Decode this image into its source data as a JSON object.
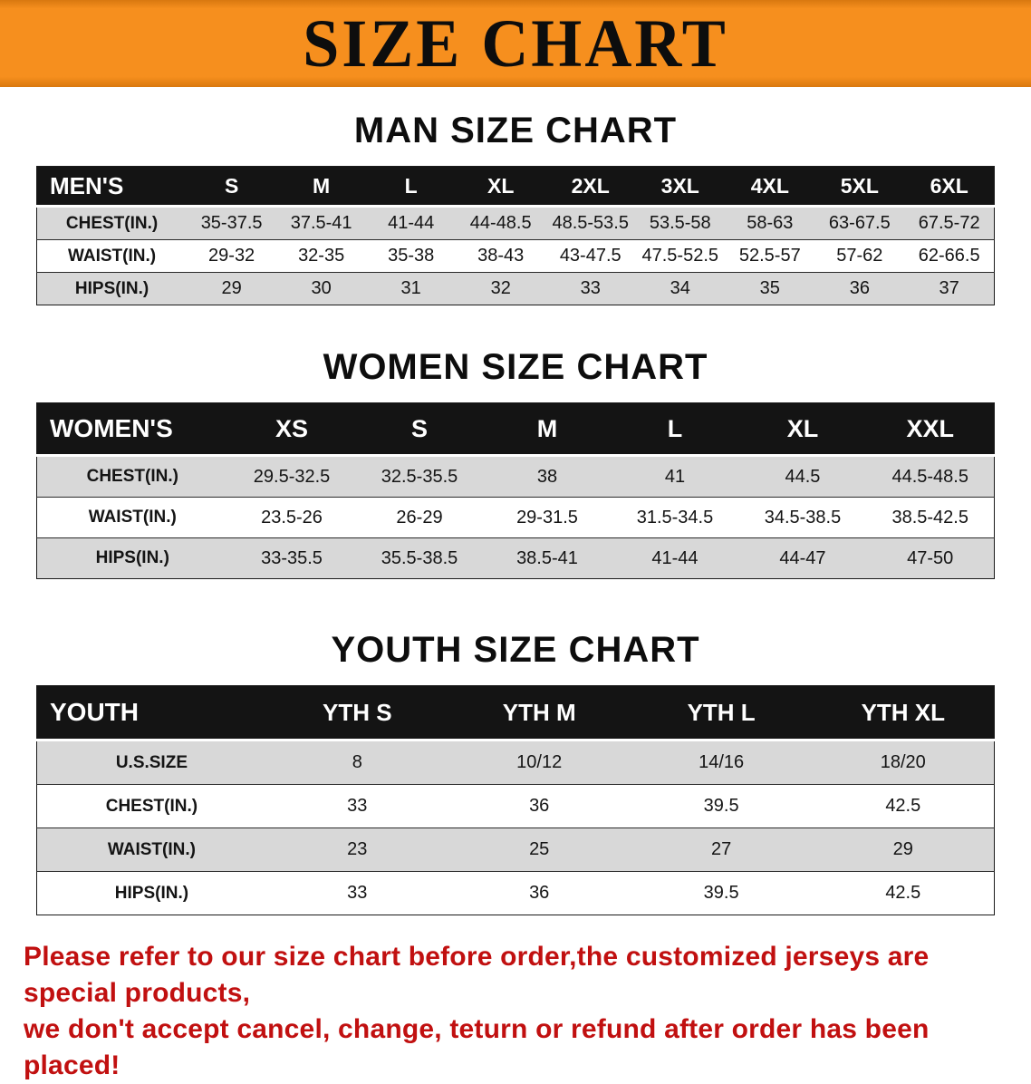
{
  "banner": {
    "title": "SIZE CHART",
    "bg_color": "#f68f1e",
    "text_color": "#0d0d0d"
  },
  "sections": [
    {
      "heading": "MAN SIZE CHART",
      "header": [
        "MEN'S",
        "S",
        "M",
        "L",
        "XL",
        "2XL",
        "3XL",
        "4XL",
        "5XL",
        "6XL"
      ],
      "rows": [
        {
          "label": "CHEST(IN.)",
          "values": [
            "35-37.5",
            "37.5-41",
            "41-44",
            "44-48.5",
            "48.5-53.5",
            "53.5-58",
            "58-63",
            "63-67.5",
            "67.5-72"
          ]
        },
        {
          "label": "WAIST(IN.)",
          "values": [
            "29-32",
            "32-35",
            "35-38",
            "38-43",
            "43-47.5",
            "47.5-52.5",
            "52.5-57",
            "57-62",
            "62-66.5"
          ]
        },
        {
          "label": "HIPS(IN.)",
          "values": [
            "29",
            "30",
            "31",
            "32",
            "33",
            "34",
            "35",
            "36",
            "37"
          ]
        }
      ]
    },
    {
      "heading": "WOMEN SIZE CHART",
      "header": [
        "WOMEN'S",
        "XS",
        "S",
        "M",
        "L",
        "XL",
        "XXL"
      ],
      "rows": [
        {
          "label": "CHEST(IN.)",
          "values": [
            "29.5-32.5",
            "32.5-35.5",
            "38",
            "41",
            "44.5",
            "44.5-48.5"
          ]
        },
        {
          "label": "WAIST(IN.)",
          "values": [
            "23.5-26",
            "26-29",
            "29-31.5",
            "31.5-34.5",
            "34.5-38.5",
            "38.5-42.5"
          ]
        },
        {
          "label": "HIPS(IN.)",
          "values": [
            "33-35.5",
            "35.5-38.5",
            "38.5-41",
            "41-44",
            "44-47",
            "47-50"
          ]
        }
      ]
    },
    {
      "heading": "YOUTH SIZE CHART",
      "header": [
        "YOUTH",
        "YTH S",
        "YTH M",
        "YTH L",
        "YTH XL"
      ],
      "rows": [
        {
          "label": "U.S.SIZE",
          "values": [
            "8",
            "10/12",
            "14/16",
            "18/20"
          ]
        },
        {
          "label": "CHEST(IN.)",
          "values": [
            "33",
            "36",
            "39.5",
            "42.5"
          ]
        },
        {
          "label": "WAIST(IN.)",
          "values": [
            "23",
            "25",
            "27",
            "29"
          ]
        },
        {
          "label": "HIPS(IN.)",
          "values": [
            "33",
            "36",
            "39.5",
            "42.5"
          ]
        }
      ]
    }
  ],
  "footer": {
    "line1": "Please refer to our size chart before order,the customized jerseys are special products,",
    "line2": "we don't accept cancel, change, teturn or refund after order has been placed!",
    "text_color": "#c11010"
  }
}
